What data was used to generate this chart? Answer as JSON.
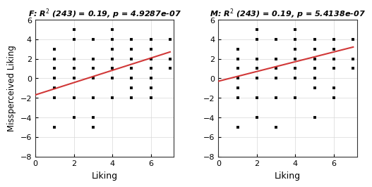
{
  "title_F": "F: R$^2$ (243) = 0.19, p = 4.9287e-07",
  "title_M": "M: R$^2$ (243) = 0.19, p = 5.4138e-07",
  "xlabel": "Liking",
  "ylabel": "Missperceived Liking",
  "xlim": [
    0,
    7.2
  ],
  "ylim": [
    -8,
    6
  ],
  "xticks": [
    0,
    2,
    4,
    6
  ],
  "yticks": [
    -8,
    -6,
    -4,
    -2,
    0,
    2,
    4,
    6
  ],
  "scatter_color": "#111111",
  "line_color": "#cc2222",
  "line_alpha": 0.9,
  "scatter_size": 9,
  "scatter_marker": "s",
  "F_scatter_x": [
    1,
    1,
    1,
    1,
    1,
    1,
    1,
    2,
    2,
    2,
    2,
    2,
    2,
    2,
    3,
    3,
    3,
    3,
    3,
    3,
    3,
    4,
    4,
    4,
    4,
    4,
    4,
    4,
    5,
    5,
    5,
    5,
    5,
    5,
    5,
    6,
    6,
    6,
    6,
    6,
    6,
    6,
    7,
    7,
    7
  ],
  "F_scatter_y": [
    3,
    2,
    1,
    0,
    -1,
    -2,
    -5,
    5,
    4,
    2,
    1,
    0,
    -2,
    -4,
    4,
    2,
    1,
    0,
    -2,
    -4,
    -5,
    5,
    4,
    3,
    2,
    1,
    0,
    -2,
    4,
    3,
    2,
    1,
    0,
    -1,
    -2,
    4,
    3,
    2,
    1,
    0,
    -1,
    -2,
    4,
    2,
    1
  ],
  "F_line_x0": 0,
  "F_line_y0": -1.7,
  "F_line_x1": 7,
  "F_line_y1": 2.7,
  "M_scatter_x": [
    1,
    1,
    1,
    1,
    1,
    1,
    1,
    2,
    2,
    2,
    2,
    2,
    2,
    2,
    3,
    3,
    3,
    3,
    3,
    3,
    3,
    4,
    4,
    4,
    4,
    4,
    4,
    4,
    5,
    5,
    5,
    5,
    5,
    5,
    5,
    6,
    6,
    6,
    6,
    6,
    6,
    6,
    7,
    7,
    7
  ],
  "M_scatter_y": [
    3,
    2,
    1,
    0,
    -1,
    -2,
    -5,
    5,
    4,
    2,
    1,
    0,
    -2,
    -4,
    4,
    2,
    1,
    1,
    0,
    -2,
    -5,
    5,
    4,
    3,
    2,
    1,
    0,
    -2,
    4,
    3,
    2,
    1,
    0,
    -1,
    -4,
    4,
    3,
    2,
    1,
    1,
    -1,
    -2,
    4,
    2,
    1
  ],
  "M_line_x0": 0,
  "M_line_y0": -0.3,
  "M_line_x1": 7,
  "M_line_y1": 3.2,
  "bg_color": "#ffffff",
  "plot_bg": "#ffffff",
  "grid_color": "#d8d8d8",
  "spine_color": "#333333"
}
